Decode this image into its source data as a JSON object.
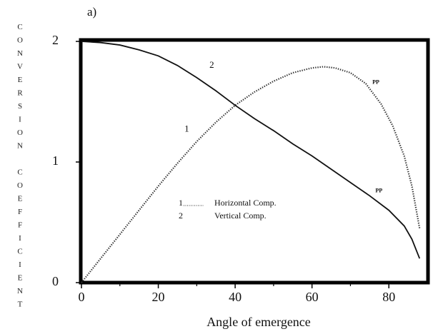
{
  "chart_data": {
    "type": "line",
    "title": "a)",
    "xlabel": "Angle of emergence",
    "ylabel": "CONVERSION COEFFICIENT",
    "xlim": [
      0,
      90
    ],
    "ylim": [
      0,
      2
    ],
    "xticks": [
      0,
      20,
      40,
      60,
      80
    ],
    "xminor_ticks": [
      10,
      30,
      50,
      70
    ],
    "yticks": [
      0,
      1,
      2
    ],
    "series": [
      {
        "name": "Horizontal Comp.",
        "label": "1",
        "end_label": "PP",
        "style": "dotted",
        "color": "#333333",
        "x": [
          0,
          5,
          10,
          15,
          20,
          25,
          30,
          35,
          40,
          45,
          50,
          55,
          60,
          63,
          66,
          70,
          74,
          78,
          81,
          84,
          86,
          88
        ],
        "values": [
          0,
          0.2,
          0.4,
          0.6,
          0.8,
          0.99,
          1.17,
          1.33,
          1.47,
          1.58,
          1.67,
          1.74,
          1.78,
          1.79,
          1.78,
          1.74,
          1.65,
          1.48,
          1.3,
          1.05,
          0.8,
          0.45
        ]
      },
      {
        "name": "Vertical Comp.",
        "label": "2",
        "end_label": "PP",
        "style": "solid",
        "color": "#111111",
        "x": [
          0,
          5,
          10,
          15,
          20,
          25,
          30,
          35,
          40,
          45,
          50,
          55,
          60,
          65,
          70,
          75,
          80,
          84,
          86,
          88
        ],
        "values": [
          2.0,
          1.99,
          1.97,
          1.93,
          1.88,
          1.8,
          1.7,
          1.59,
          1.47,
          1.36,
          1.26,
          1.15,
          1.05,
          0.94,
          0.83,
          0.72,
          0.6,
          0.47,
          0.36,
          0.2
        ]
      }
    ]
  }
}
